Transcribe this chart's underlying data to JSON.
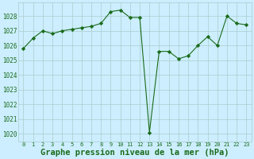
{
  "x": [
    0,
    1,
    2,
    3,
    4,
    5,
    6,
    7,
    8,
    9,
    10,
    11,
    12,
    13,
    14,
    15,
    16,
    17,
    18,
    19,
    20,
    21,
    22,
    23
  ],
  "y": [
    1025.8,
    1026.5,
    1027.0,
    1026.8,
    1027.0,
    1027.1,
    1027.2,
    1027.3,
    1027.5,
    1028.3,
    1028.4,
    1027.9,
    1027.9,
    1020.1,
    1025.6,
    1025.6,
    1025.1,
    1025.3,
    1026.0,
    1026.6,
    1026.0,
    1028.0,
    1027.5,
    1027.4
  ],
  "line_color": "#1a6b1a",
  "marker": "D",
  "marker_size": 2.2,
  "bg_color": "#cceeff",
  "grid_color": "#aacccc",
  "xlabel": "Graphe pression niveau de la mer (hPa)",
  "xlabel_fontsize": 7.5,
  "xtick_labels": [
    "0",
    "1",
    "2",
    "3",
    "4",
    "5",
    "6",
    "7",
    "8",
    "9",
    "10",
    "11",
    "12",
    "13",
    "14",
    "15",
    "16",
    "17",
    "18",
    "19",
    "20",
    "21",
    "22",
    "23"
  ],
  "ytick_min": 1020,
  "ytick_max": 1028,
  "ytick_step": 1,
  "axis_label_color": "#1a6b1a",
  "bottom_label_color": "#1a6b1a"
}
